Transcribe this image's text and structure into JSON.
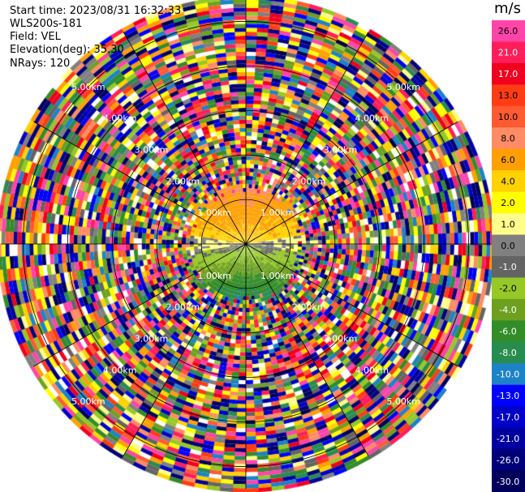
{
  "info": {
    "start_time": "Start time: 2023/08/31 16:32:33",
    "instrument": "WLS200s-181",
    "field": "Field: VEL",
    "elevation": "Elevation(deg): 35.30",
    "nrays": "NRays: 120"
  },
  "chart_data": {
    "type": "heatmap",
    "projection": "polar (PPI scan)",
    "field": "VEL",
    "unit": "m/s",
    "range_rings_km": [
      1.0,
      2.0,
      3.0,
      4.0,
      5.0
    ],
    "ring_labels": [
      "1.00km",
      "2.00km",
      "3.00km",
      "4.00km",
      "5.00km"
    ],
    "max_range_km": 5.5,
    "nrays": 120,
    "colorbar": {
      "levels": [
        26.0,
        21.0,
        17.0,
        13.0,
        10.0,
        8.0,
        6.0,
        4.0,
        2.0,
        1.0,
        0.0,
        -1.0,
        -2.0,
        -4.0,
        -6.0,
        -8.0,
        -10.0,
        -13.0,
        -17.0,
        -21.0,
        -26.0,
        -30.0
      ],
      "labels": [
        "26.0",
        "21.0",
        "17.0",
        "13.0",
        "10.0",
        "8.0",
        "6.0",
        "4.0",
        "2.0",
        "1.0",
        "0.0",
        "-1.0",
        "-2.0",
        "-4.0",
        "-6.0",
        "-8.0",
        "-10.0",
        "-13.0",
        "-17.0",
        "-21.0",
        "-26.0",
        "-30.0"
      ],
      "colors": [
        "#ff44aa",
        "#ff1e5a",
        "#f0001e",
        "#ff3c14",
        "#ff5a32",
        "#ff8c64",
        "#ffa000",
        "#ffd200",
        "#ffff00",
        "#ffff8c",
        "#808080",
        "#646464",
        "#96c828",
        "#6ea020",
        "#328c28",
        "#288c50",
        "#1e82c8",
        "#0000ff",
        "#0000c8",
        "#0000a0",
        "#000078",
        "#00005a"
      ]
    },
    "pattern": {
      "near_field_km": 1.3,
      "near_field_velocity_ms": {
        "north": 6.0,
        "center": 3.0,
        "south": -7.0
      },
      "far_field": "noise across full color range"
    }
  }
}
